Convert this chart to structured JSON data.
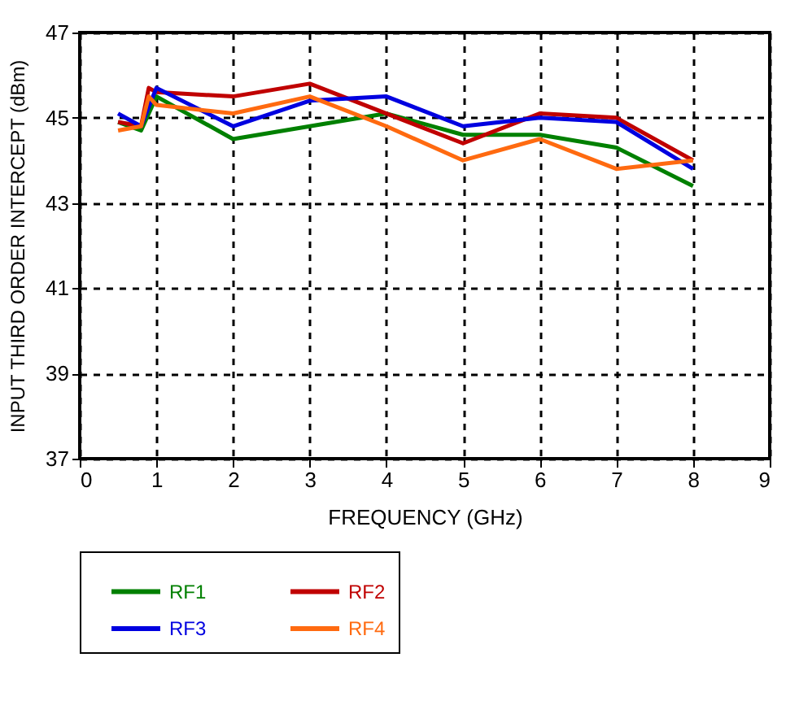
{
  "chart_data": {
    "type": "line",
    "xlabel": "FREQUENCY (GHz)",
    "ylabel": "INPUT THIRD ORDER INTERCEPT  (dBm)",
    "xlim": [
      0,
      9
    ],
    "xticks": [
      0,
      1,
      2,
      3,
      4,
      5,
      6,
      7,
      8,
      9
    ],
    "ylim": [
      37,
      47
    ],
    "yticks": [
      37,
      39,
      41,
      43,
      45,
      47
    ],
    "grid": true,
    "legend": "bottom",
    "marker": "none",
    "line_style": "solid",
    "series": [
      {
        "name": "RF1",
        "color": "#008000",
        "x": [
          0.5,
          0.8,
          1,
          2,
          3,
          4,
          5,
          6,
          7,
          8
        ],
        "values": [
          44.9,
          44.7,
          45.5,
          44.5,
          44.8,
          45.1,
          44.6,
          44.6,
          44.3,
          43.4
        ]
      },
      {
        "name": "RF2",
        "color": "#c00000",
        "x": [
          0.5,
          0.8,
          0.9,
          1,
          2,
          3,
          4,
          5,
          6,
          7,
          8
        ],
        "values": [
          44.9,
          44.8,
          45.7,
          45.6,
          45.5,
          45.8,
          45.1,
          44.4,
          45.1,
          45.0,
          44.0
        ]
      },
      {
        "name": "RF3",
        "color": "#0000e0",
        "x": [
          0.5,
          0.8,
          1,
          2,
          3,
          4,
          5,
          6,
          7,
          8
        ],
        "values": [
          45.1,
          44.8,
          45.7,
          44.8,
          45.4,
          45.5,
          44.8,
          45.0,
          44.9,
          43.8
        ]
      },
      {
        "name": "RF4",
        "color": "#ff6a10",
        "x": [
          0.5,
          0.8,
          0.9,
          1,
          2,
          3,
          4,
          5,
          6,
          7,
          8
        ],
        "values": [
          44.7,
          44.8,
          45.5,
          45.3,
          45.1,
          45.5,
          44.8,
          44.0,
          44.5,
          43.8,
          44.0
        ]
      }
    ]
  }
}
